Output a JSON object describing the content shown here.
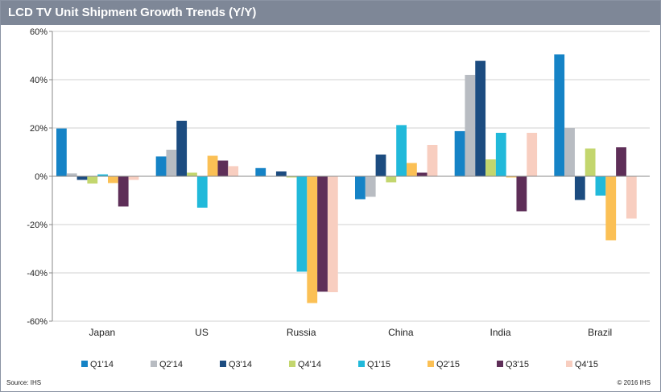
{
  "title": "LCD TV Unit Shipment Growth Trends (Y/Y)",
  "source": "Source: IHS",
  "copyright": "© 2016 IHS",
  "chart_data": {
    "type": "bar",
    "title": "LCD TV Unit Shipment Growth Trends (Y/Y)",
    "xlabel": "",
    "ylabel": "",
    "ylim": [
      -60,
      60
    ],
    "yticks": [
      60,
      40,
      20,
      0,
      -20,
      -40,
      -60
    ],
    "ytick_labels": [
      "60%",
      "40%",
      "20%",
      "0%",
      "-20%",
      "-40%",
      "-60%"
    ],
    "grid": true,
    "legend_position": "bottom",
    "categories": [
      "Japan",
      "US",
      "Russia",
      "China",
      "India",
      "Brazil"
    ],
    "series": [
      {
        "name": "Q1'14",
        "color": "#1583c6",
        "values": [
          19.8,
          8.2,
          3.4,
          -9.5,
          18.7,
          50.5
        ]
      },
      {
        "name": "Q2'14",
        "color": "#b8bcc2",
        "values": [
          1.2,
          11.0,
          0.0,
          -8.5,
          42.0,
          20.0
        ]
      },
      {
        "name": "Q3'14",
        "color": "#1c4c80",
        "values": [
          -1.5,
          23.0,
          2.0,
          9.0,
          47.8,
          -9.8
        ]
      },
      {
        "name": "Q4'14",
        "color": "#c3d66e",
        "values": [
          -3.0,
          1.5,
          -0.5,
          -2.5,
          7.0,
          11.5
        ]
      },
      {
        "name": "Q1'15",
        "color": "#21b9da",
        "values": [
          0.8,
          -13.0,
          -39.5,
          21.2,
          18.0,
          -8.0
        ]
      },
      {
        "name": "Q2'15",
        "color": "#fbc055",
        "values": [
          -2.8,
          8.5,
          -52.5,
          5.5,
          -0.5,
          -26.5
        ]
      },
      {
        "name": "Q3'15",
        "color": "#5e2e58",
        "values": [
          -12.5,
          6.5,
          -47.8,
          1.5,
          -14.5,
          12.0
        ]
      },
      {
        "name": "Q4'15",
        "color": "#f8cec0",
        "values": [
          -1.5,
          4.2,
          -48.0,
          13.0,
          18.0,
          -17.5
        ]
      }
    ]
  }
}
